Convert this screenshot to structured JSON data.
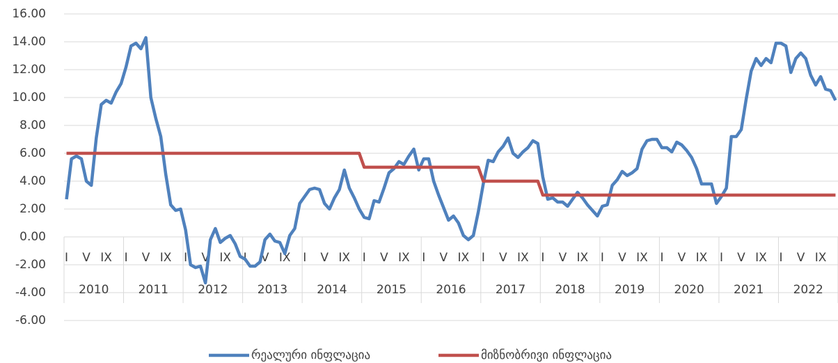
{
  "chart_data": {
    "type": "line",
    "categories": [
      "I",
      null,
      null,
      null,
      "V",
      null,
      null,
      null,
      "IX",
      null,
      null,
      null,
      "I",
      null,
      null,
      null,
      "V",
      null,
      null,
      null,
      "IX",
      null,
      null,
      null,
      "I",
      null,
      null,
      null,
      "V",
      null,
      null,
      null,
      "IX",
      null,
      null,
      null,
      "I",
      null,
      null,
      null,
      "V",
      null,
      null,
      null,
      "IX",
      null,
      null,
      null,
      "I",
      null,
      null,
      null,
      "V",
      null,
      null,
      null,
      "IX",
      null,
      null,
      null,
      "I",
      null,
      null,
      null,
      "V",
      null,
      null,
      null,
      "IX",
      null,
      null,
      null,
      "I",
      null,
      null,
      null,
      "V",
      null,
      null,
      null,
      "IX",
      null,
      null,
      null,
      "I",
      null,
      null,
      null,
      "V",
      null,
      null,
      null,
      "IX",
      null,
      null,
      null,
      "I",
      null,
      null,
      null,
      "V",
      null,
      null,
      null,
      "IX",
      null,
      null,
      null,
      "I",
      null,
      null,
      null,
      "V",
      null,
      null,
      null,
      "IX",
      null,
      null,
      null,
      "I",
      null,
      null,
      null,
      "V",
      null,
      null,
      null,
      "IX",
      null,
      null,
      null,
      "I",
      null,
      null,
      null,
      "V",
      null,
      null,
      null,
      "IX",
      null,
      null,
      null,
      "I",
      null,
      null,
      null,
      "V",
      null,
      null,
      null,
      "IX",
      null,
      null,
      null
    ],
    "years": [
      "2010",
      "2011",
      "2012",
      "2013",
      "2014",
      "2015",
      "2016",
      "2017",
      "2018",
      "2019",
      "2020",
      "2021",
      "2022"
    ],
    "series": [
      {
        "name": "რეალური ინფლაცია",
        "color": "#4f81bd",
        "values": [
          2.7,
          5.6,
          5.8,
          5.6,
          4.0,
          3.7,
          7.1,
          9.5,
          9.8,
          9.6,
          10.4,
          11.0,
          12.2,
          13.7,
          13.9,
          13.5,
          14.3,
          10.0,
          8.5,
          7.2,
          4.5,
          2.3,
          1.9,
          2.0,
          0.5,
          -2.0,
          -2.2,
          -2.1,
          -3.3,
          -0.2,
          0.6,
          -0.4,
          -0.1,
          0.1,
          -0.5,
          -1.4,
          -1.6,
          -2.1,
          -2.1,
          -1.8,
          -0.2,
          0.2,
          -0.3,
          -0.4,
          -1.2,
          0.1,
          0.6,
          2.4,
          2.9,
          3.4,
          3.5,
          3.4,
          2.4,
          2.0,
          2.8,
          3.4,
          4.8,
          3.5,
          2.8,
          2.0,
          1.4,
          1.3,
          2.6,
          2.5,
          3.5,
          4.6,
          4.9,
          5.4,
          5.2,
          5.8,
          6.3,
          4.8,
          5.6,
          5.6,
          4.0,
          3.0,
          2.1,
          1.2,
          1.5,
          1.0,
          0.1,
          -0.2,
          0.1,
          1.8,
          3.8,
          5.5,
          5.4,
          6.1,
          6.5,
          7.1,
          6.0,
          5.7,
          6.1,
          6.4,
          6.9,
          6.7,
          4.3,
          2.7,
          2.8,
          2.5,
          2.5,
          2.2,
          2.7,
          3.2,
          2.8,
          2.3,
          1.9,
          1.5,
          2.2,
          2.3,
          3.7,
          4.1,
          4.7,
          4.4,
          4.6,
          4.9,
          6.3,
          6.9,
          7.0,
          7.0,
          6.4,
          6.4,
          6.1,
          6.8,
          6.6,
          6.2,
          5.7,
          4.9,
          3.8,
          3.8,
          3.8,
          2.4,
          2.9,
          3.5,
          7.2,
          7.2,
          7.7,
          9.9,
          11.9,
          12.8,
          12.3,
          12.8,
          12.5,
          13.9,
          13.9,
          13.7,
          11.8,
          12.8,
          13.2,
          12.8,
          11.6,
          10.9,
          11.5,
          10.6,
          10.5,
          9.8
        ]
      },
      {
        "name": "მიზნობრივი ინფლაცია",
        "color": "#c0504d",
        "values": [
          6,
          6,
          6,
          6,
          6,
          6,
          6,
          6,
          6,
          6,
          6,
          6,
          6,
          6,
          6,
          6,
          6,
          6,
          6,
          6,
          6,
          6,
          6,
          6,
          6,
          6,
          6,
          6,
          6,
          6,
          6,
          6,
          6,
          6,
          6,
          6,
          6,
          6,
          6,
          6,
          6,
          6,
          6,
          6,
          6,
          6,
          6,
          6,
          6,
          6,
          6,
          6,
          6,
          6,
          6,
          6,
          6,
          6,
          6,
          6,
          5,
          5,
          5,
          5,
          5,
          5,
          5,
          5,
          5,
          5,
          5,
          5,
          5,
          5,
          5,
          5,
          5,
          5,
          5,
          5,
          5,
          5,
          5,
          5,
          4,
          4,
          4,
          4,
          4,
          4,
          4,
          4,
          4,
          4,
          4,
          4,
          3,
          3,
          3,
          3,
          3,
          3,
          3,
          3,
          3,
          3,
          3,
          3,
          3,
          3,
          3,
          3,
          3,
          3,
          3,
          3,
          3,
          3,
          3,
          3,
          3,
          3,
          3,
          3,
          3,
          3,
          3,
          3,
          3,
          3,
          3,
          3,
          3,
          3,
          3,
          3,
          3,
          3,
          3,
          3,
          3,
          3,
          3,
          3,
          3,
          3,
          3,
          3,
          3,
          3,
          3,
          3,
          3,
          3,
          3,
          3
        ]
      }
    ],
    "ylim": [
      -6,
      16
    ],
    "yticks": [
      {
        "value": -6,
        "label": "-6.00"
      },
      {
        "value": -4,
        "label": "-4.00"
      },
      {
        "value": -2,
        "label": "-2.00"
      },
      {
        "value": 0,
        "label": "0.00"
      },
      {
        "value": 2,
        "label": "2.00"
      },
      {
        "value": 4,
        "label": "4.00"
      },
      {
        "value": 6,
        "label": "6.00"
      },
      {
        "value": 8,
        "label": "8.00"
      },
      {
        "value": 10,
        "label": "10.00"
      },
      {
        "value": 12,
        "label": "12.00"
      },
      {
        "value": 14,
        "label": "14.00"
      },
      {
        "value": 16,
        "label": "16.00"
      }
    ],
    "grid": true,
    "legend": "bottom"
  }
}
